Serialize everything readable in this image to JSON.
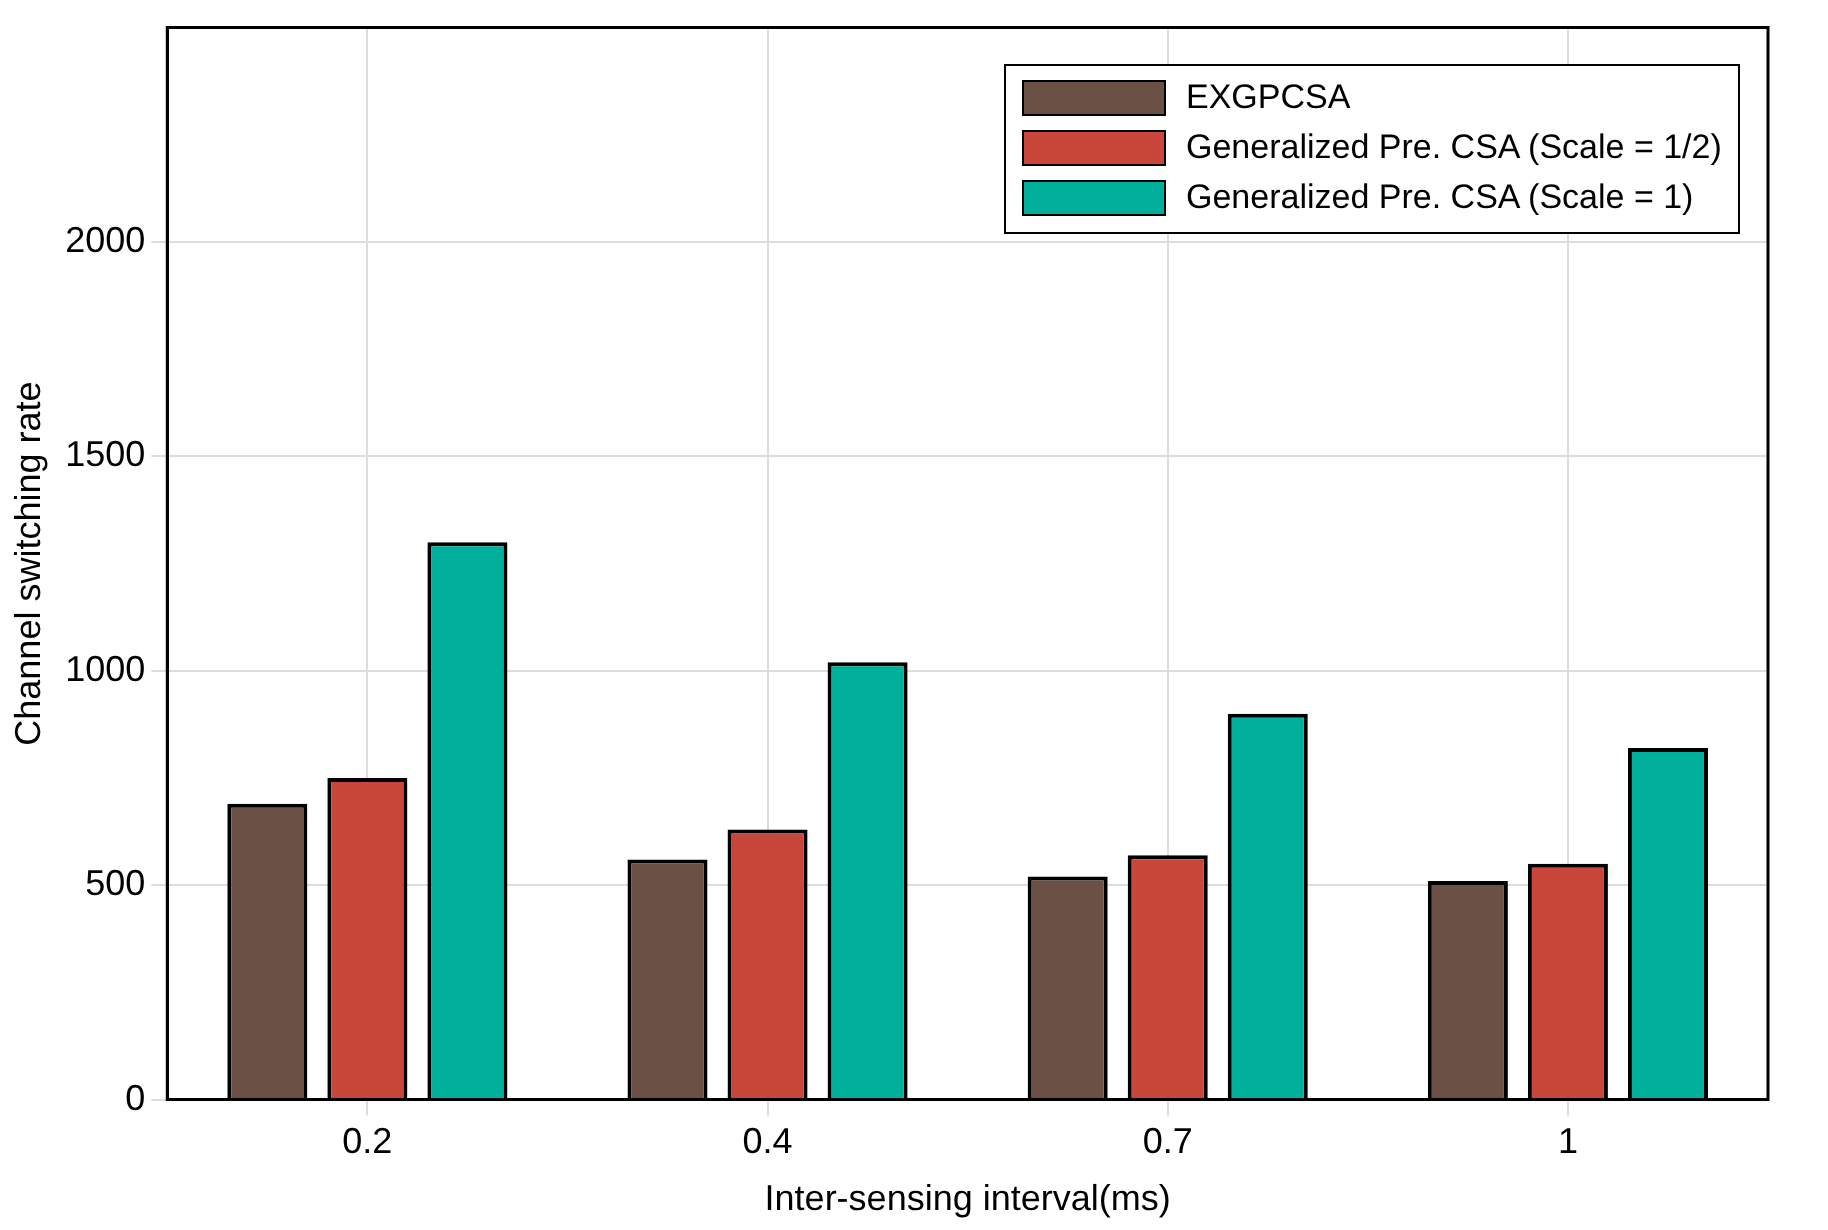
{
  "chart_data": {
    "type": "bar",
    "xlabel": "Inter-sensing interval(ms)",
    "ylabel": "Channel switching rate",
    "categories": [
      "0.2",
      "0.4",
      "0.7",
      "1"
    ],
    "series": [
      {
        "name": "EXGPCSA",
        "color": "#6b5045",
        "values": [
          690,
          560,
          520,
          510
        ]
      },
      {
        "name": "Generalized Pre. CSA (Scale = 1/2)",
        "color": "#c8463a",
        "values": [
          750,
          630,
          570,
          550
        ]
      },
      {
        "name": "Generalized Pre. CSA (Scale = 1)",
        "color": "#00b09a",
        "values": [
          1300,
          1020,
          900,
          820
        ]
      }
    ],
    "ylim": [
      0,
      2500
    ],
    "yticks": [
      0,
      500,
      1000,
      1500,
      2000
    ],
    "grid": true,
    "legend": "top right"
  }
}
